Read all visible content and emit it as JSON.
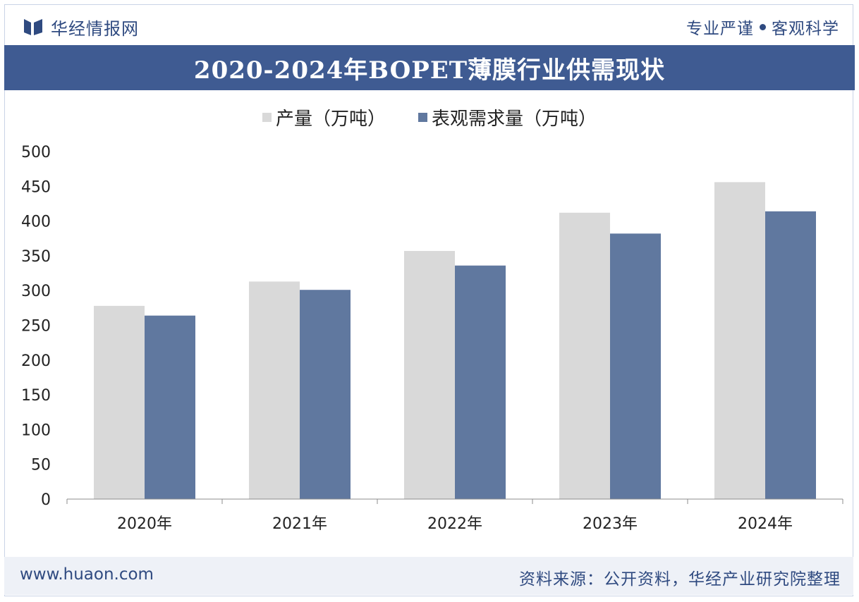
{
  "header": {
    "brand_name": "华经情报网",
    "slogan_left": "专业严谨",
    "slogan_right": "客观科学"
  },
  "footer": {
    "website": "www.huaon.com",
    "source": "资料来源：公开资料，华经产业研究院整理"
  },
  "colors": {
    "primary": "#3f5b92",
    "series_production": "#d9d9d9",
    "series_demand": "#60789f"
  },
  "chart_data": {
    "type": "bar",
    "title": "2020-2024年BOPET薄膜行业供需现状",
    "categories": [
      "2020年",
      "2021年",
      "2022年",
      "2023年",
      "2024年"
    ],
    "series": [
      {
        "name": "产量（万吨）",
        "values": [
          278,
          313,
          357,
          412,
          456
        ]
      },
      {
        "name": "表观需求量（万吨）",
        "values": [
          264,
          301,
          336,
          382,
          414
        ]
      }
    ],
    "ylim": [
      0,
      500
    ],
    "yticks": [
      0,
      50,
      100,
      150,
      200,
      250,
      300,
      350,
      400,
      450,
      500
    ],
    "xlabel": "",
    "ylabel": "",
    "legend_position": "top-center",
    "grid": false
  }
}
